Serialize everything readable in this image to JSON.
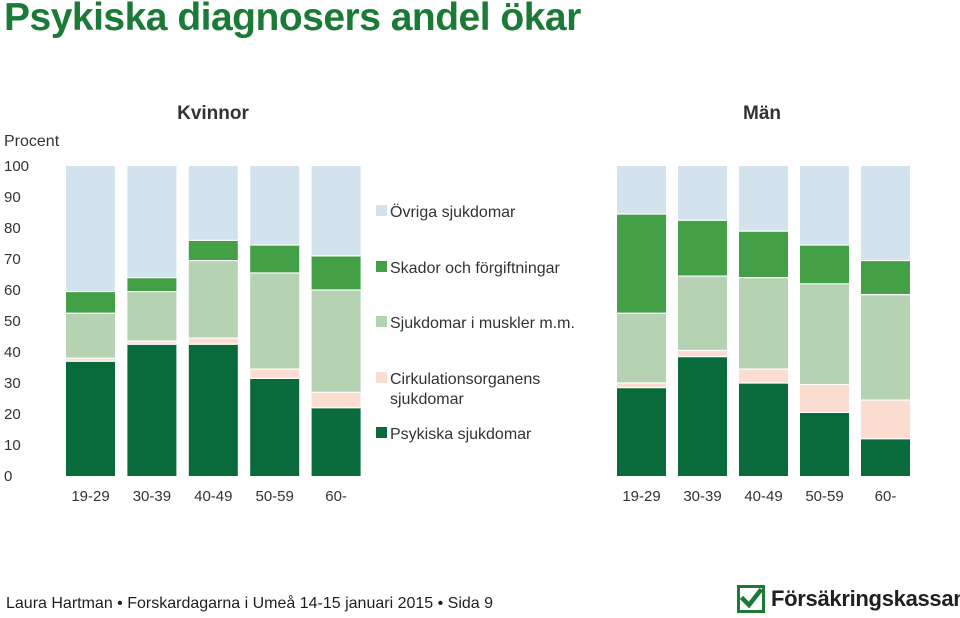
{
  "title": "Psykiska diagnosers andel ökar",
  "footer": "Laura Hartman • Forskardagarna i Umeå 14-15 januari 2015 • Sida 9",
  "logo": {
    "text": "Försäkringskassan",
    "icon": "fk-logo-icon"
  },
  "colors": {
    "ovriga": "#d3e3ee",
    "skador": "#43a047",
    "muskler": "#b5d3b2",
    "cirkulation": "#fbddd2",
    "psykiska": "#096b3b",
    "brand": "#1a7a36"
  },
  "chart_data": [
    {
      "type": "bar",
      "stacked": true,
      "title": "Kvinnor",
      "ylabel": "Procent",
      "ylim": [
        0,
        100
      ],
      "yticks": [
        "0",
        "10",
        "20",
        "30",
        "40",
        "50",
        "60",
        "70",
        "80",
        "90",
        "100"
      ],
      "categories": [
        "19-29",
        "30-39",
        "40-49",
        "50-59",
        "60-"
      ],
      "legend_position": "right",
      "series": [
        {
          "name": "Psykiska sjukdomar",
          "color": "#096b3b",
          "values": [
            37,
            42.5,
            42.5,
            31.5,
            22
          ]
        },
        {
          "name": "Cirkulationsorganens sjukdomar",
          "color": "#fbddd2",
          "values": [
            1,
            1,
            2,
            3,
            5
          ]
        },
        {
          "name": "Sjukdomar i muskler m.m.",
          "color": "#b5d3b2",
          "values": [
            14.5,
            16,
            25,
            31,
            33
          ]
        },
        {
          "name": "Skador och förgiftningar",
          "color": "#43a047",
          "values": [
            7,
            4.5,
            6.5,
            9,
            11
          ]
        },
        {
          "name": "Övriga sjukdomar",
          "color": "#d3e3ee",
          "values": [
            40.5,
            36,
            24,
            25.5,
            29
          ]
        }
      ]
    },
    {
      "type": "bar",
      "stacked": true,
      "title": "Män",
      "ylim": [
        0,
        100
      ],
      "categories": [
        "19-29",
        "30-39",
        "40-49",
        "50-59",
        "60-"
      ],
      "series": [
        {
          "name": "Psykiska sjukdomar",
          "color": "#096b3b",
          "values": [
            28.5,
            38.5,
            30,
            20.5,
            12
          ]
        },
        {
          "name": "Cirkulationsorganens sjukdomar",
          "color": "#fbddd2",
          "values": [
            1.5,
            2,
            4.5,
            9,
            12.5
          ]
        },
        {
          "name": "Sjukdomar i muskler m.m.",
          "color": "#b5d3b2",
          "values": [
            22.5,
            24,
            29.5,
            32.5,
            34
          ]
        },
        {
          "name": "Skador och förgiftningar",
          "color": "#43a047",
          "values": [
            32,
            18,
            15,
            12.5,
            11
          ]
        },
        {
          "name": "Övriga sjukdomar",
          "color": "#d3e3ee",
          "values": [
            15.5,
            17.5,
            21,
            25.5,
            30.5
          ]
        }
      ]
    }
  ],
  "legend": [
    {
      "label": "Övriga sjukdomar",
      "color": "#d3e3ee"
    },
    {
      "label": "Skador och förgiftningar",
      "color": "#43a047"
    },
    {
      "label": "Sjukdomar i muskler m.m.",
      "color": "#b5d3b2"
    },
    {
      "label": "Cirkulationsorganens sjukdomar",
      "lines": [
        "Cirkulationsorganens",
        "sjukdomar"
      ],
      "color": "#fbddd2"
    },
    {
      "label": "Psykiska sjukdomar",
      "color": "#096b3b"
    }
  ]
}
